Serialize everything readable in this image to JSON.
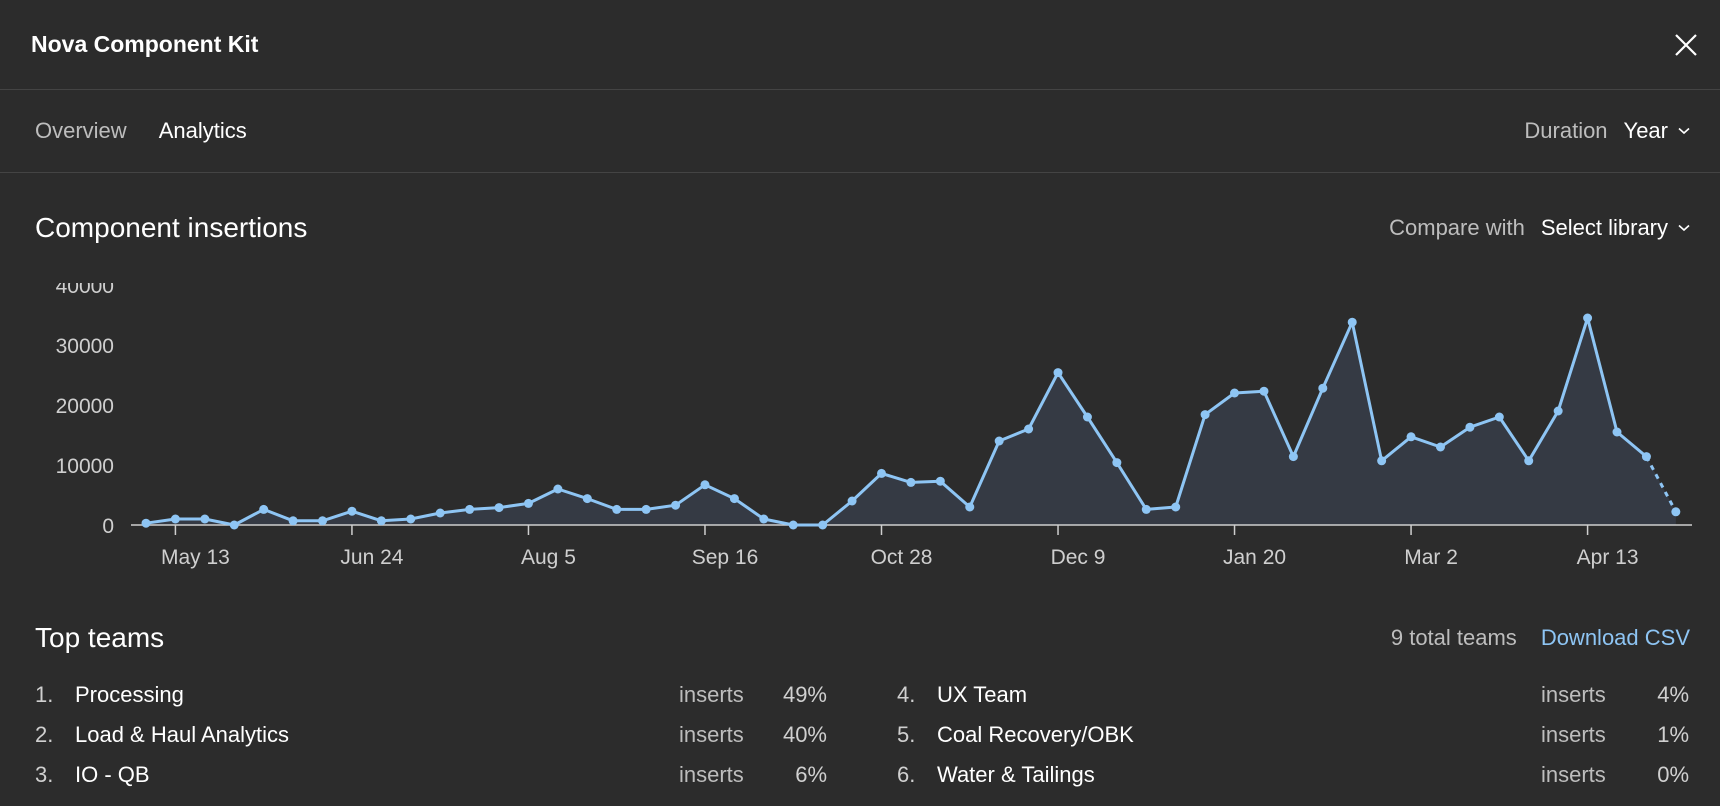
{
  "header": {
    "title": "Nova Component Kit",
    "close_icon": "close-icon"
  },
  "tabs": [
    {
      "label": "Overview",
      "active": false
    },
    {
      "label": "Analytics",
      "active": true
    }
  ],
  "duration": {
    "label": "Duration",
    "value": "Year"
  },
  "chart_section": {
    "title": "Component insertions",
    "compare_label": "Compare with",
    "compare_value": "Select library"
  },
  "chart_data": {
    "type": "area",
    "title": "Component insertions",
    "ylim": [
      0,
      40000
    ],
    "yticks": [
      "40000",
      "30000",
      "20000",
      "10000",
      "0"
    ],
    "xticks": [
      "May 13",
      "Jun 24",
      "Aug 5",
      "Sep 16",
      "Oct 28",
      "Dec 9",
      "Jan 20",
      "Mar 2",
      "Apr 13"
    ],
    "values": [
      300,
      1000,
      1000,
      0,
      2600,
      700,
      700,
      2300,
      700,
      1000,
      2000,
      2600,
      2900,
      3600,
      6000,
      4400,
      2600,
      2600,
      3300,
      6700,
      4400,
      1000,
      0,
      0,
      4000,
      8600,
      7100,
      7300,
      3000,
      14000,
      16000,
      25400,
      18000,
      10400,
      2600,
      3000,
      18400,
      22000,
      22300,
      11400,
      22800,
      33800,
      10700,
      14700,
      13000,
      16300,
      18000,
      10700,
      19000,
      34500,
      15500,
      11400,
      2200
    ],
    "projected_last_point": true,
    "colors": {
      "line": "#8ec5f4",
      "area": "#353a44",
      "axis": "#cfcfcf",
      "text": "#cfcfcf"
    }
  },
  "teams": {
    "title": "Top teams",
    "total": "9 total teams",
    "download": "Download CSV",
    "metric": "inserts",
    "left": [
      {
        "rank": "1.",
        "name": "Processing",
        "metric": "inserts",
        "pct": "49%"
      },
      {
        "rank": "2.",
        "name": "Load & Haul Analytics",
        "metric": "inserts",
        "pct": "40%"
      },
      {
        "rank": "3.",
        "name": "IO - QB",
        "metric": "inserts",
        "pct": "6%"
      }
    ],
    "right": [
      {
        "rank": "4.",
        "name": "UX Team",
        "metric": "inserts",
        "pct": "4%"
      },
      {
        "rank": "5.",
        "name": "Coal Recovery/OBK",
        "metric": "inserts",
        "pct": "1%"
      },
      {
        "rank": "6.",
        "name": "Water & Tailings",
        "metric": "inserts",
        "pct": "0%"
      }
    ]
  }
}
